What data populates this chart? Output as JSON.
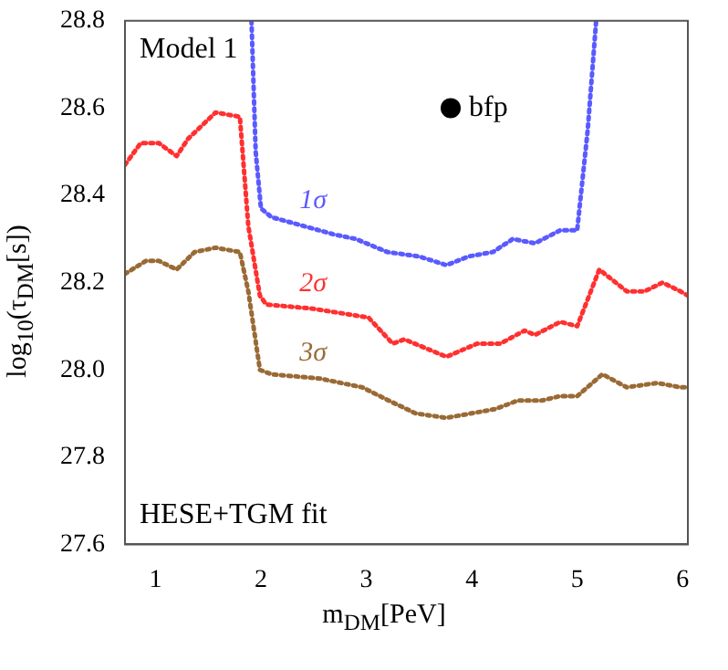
{
  "chart_data": {
    "type": "line",
    "xlabel": "m$_{DM}$[PeV]",
    "ylabel": "log$_{10}$(τ$_{DM}$[s])",
    "annotations": [
      "Model 1",
      "HESE+TGM fit"
    ],
    "xlim": [
      0.71,
      6.05
    ],
    "xticks": [
      1,
      2,
      3,
      4,
      5,
      6
    ],
    "ylim": [
      27.6,
      28.8
    ],
    "yticks": [
      27.6,
      27.8,
      {
        "value": 28,
        "label": "28.0"
      },
      28.2,
      28.4,
      28.6,
      28.8
    ],
    "grid": false,
    "legend": false,
    "marker": "none",
    "line_style": "dotted",
    "series": [
      {
        "name": "1σ",
        "color": "#5a5aff",
        "x": [
          1.91,
          1.95,
          2.0,
          2.1,
          2.4,
          2.7,
          2.9,
          3.2,
          3.5,
          3.76,
          3.97,
          4.2,
          4.39,
          4.6,
          4.84,
          5.0,
          5.1,
          5.18
        ],
        "values": [
          28.8,
          28.5,
          28.37,
          28.35,
          28.33,
          28.31,
          28.3,
          28.27,
          28.26,
          28.24,
          28.26,
          28.27,
          28.3,
          28.29,
          28.32,
          28.32,
          28.55,
          28.8
        ]
      },
      {
        "name": "2σ",
        "color": "#ff3030",
        "x": [
          0.71,
          0.86,
          1.03,
          1.2,
          1.31,
          1.57,
          1.8,
          1.88,
          1.99,
          2.05,
          2.5,
          3.02,
          3.25,
          3.36,
          3.76,
          4.05,
          4.27,
          4.5,
          4.6,
          4.84,
          5.0,
          5.21,
          5.47,
          5.64,
          5.81,
          5.98,
          6.05
        ],
        "values": [
          28.47,
          28.52,
          28.52,
          28.49,
          28.53,
          28.59,
          28.58,
          28.33,
          28.17,
          28.15,
          28.14,
          28.12,
          28.06,
          28.07,
          28.03,
          28.06,
          28.06,
          28.09,
          28.08,
          28.11,
          28.1,
          28.23,
          28.18,
          28.18,
          28.2,
          28.18,
          28.17
        ]
      },
      {
        "name": "3σ",
        "color": "#9a6a35",
        "x": [
          0.71,
          0.91,
          1.03,
          1.2,
          1.37,
          1.57,
          1.8,
          1.88,
          1.99,
          2.1,
          2.56,
          2.96,
          3.21,
          3.47,
          3.76,
          4.22,
          4.44,
          4.67,
          4.84,
          5.0,
          5.24,
          5.47,
          5.76,
          5.98,
          6.05
        ],
        "values": [
          28.22,
          28.25,
          28.25,
          28.23,
          28.27,
          28.28,
          28.27,
          28.18,
          28.0,
          27.99,
          27.98,
          27.96,
          27.93,
          27.9,
          27.89,
          27.91,
          27.93,
          27.93,
          27.94,
          27.94,
          27.99,
          27.96,
          27.97,
          27.96,
          27.96
        ]
      },
      {
        "name": "bfp",
        "type": "scatter",
        "marker": "circle",
        "color": "#000000",
        "x": [
          3.8
        ],
        "values": [
          28.6
        ]
      }
    ]
  }
}
